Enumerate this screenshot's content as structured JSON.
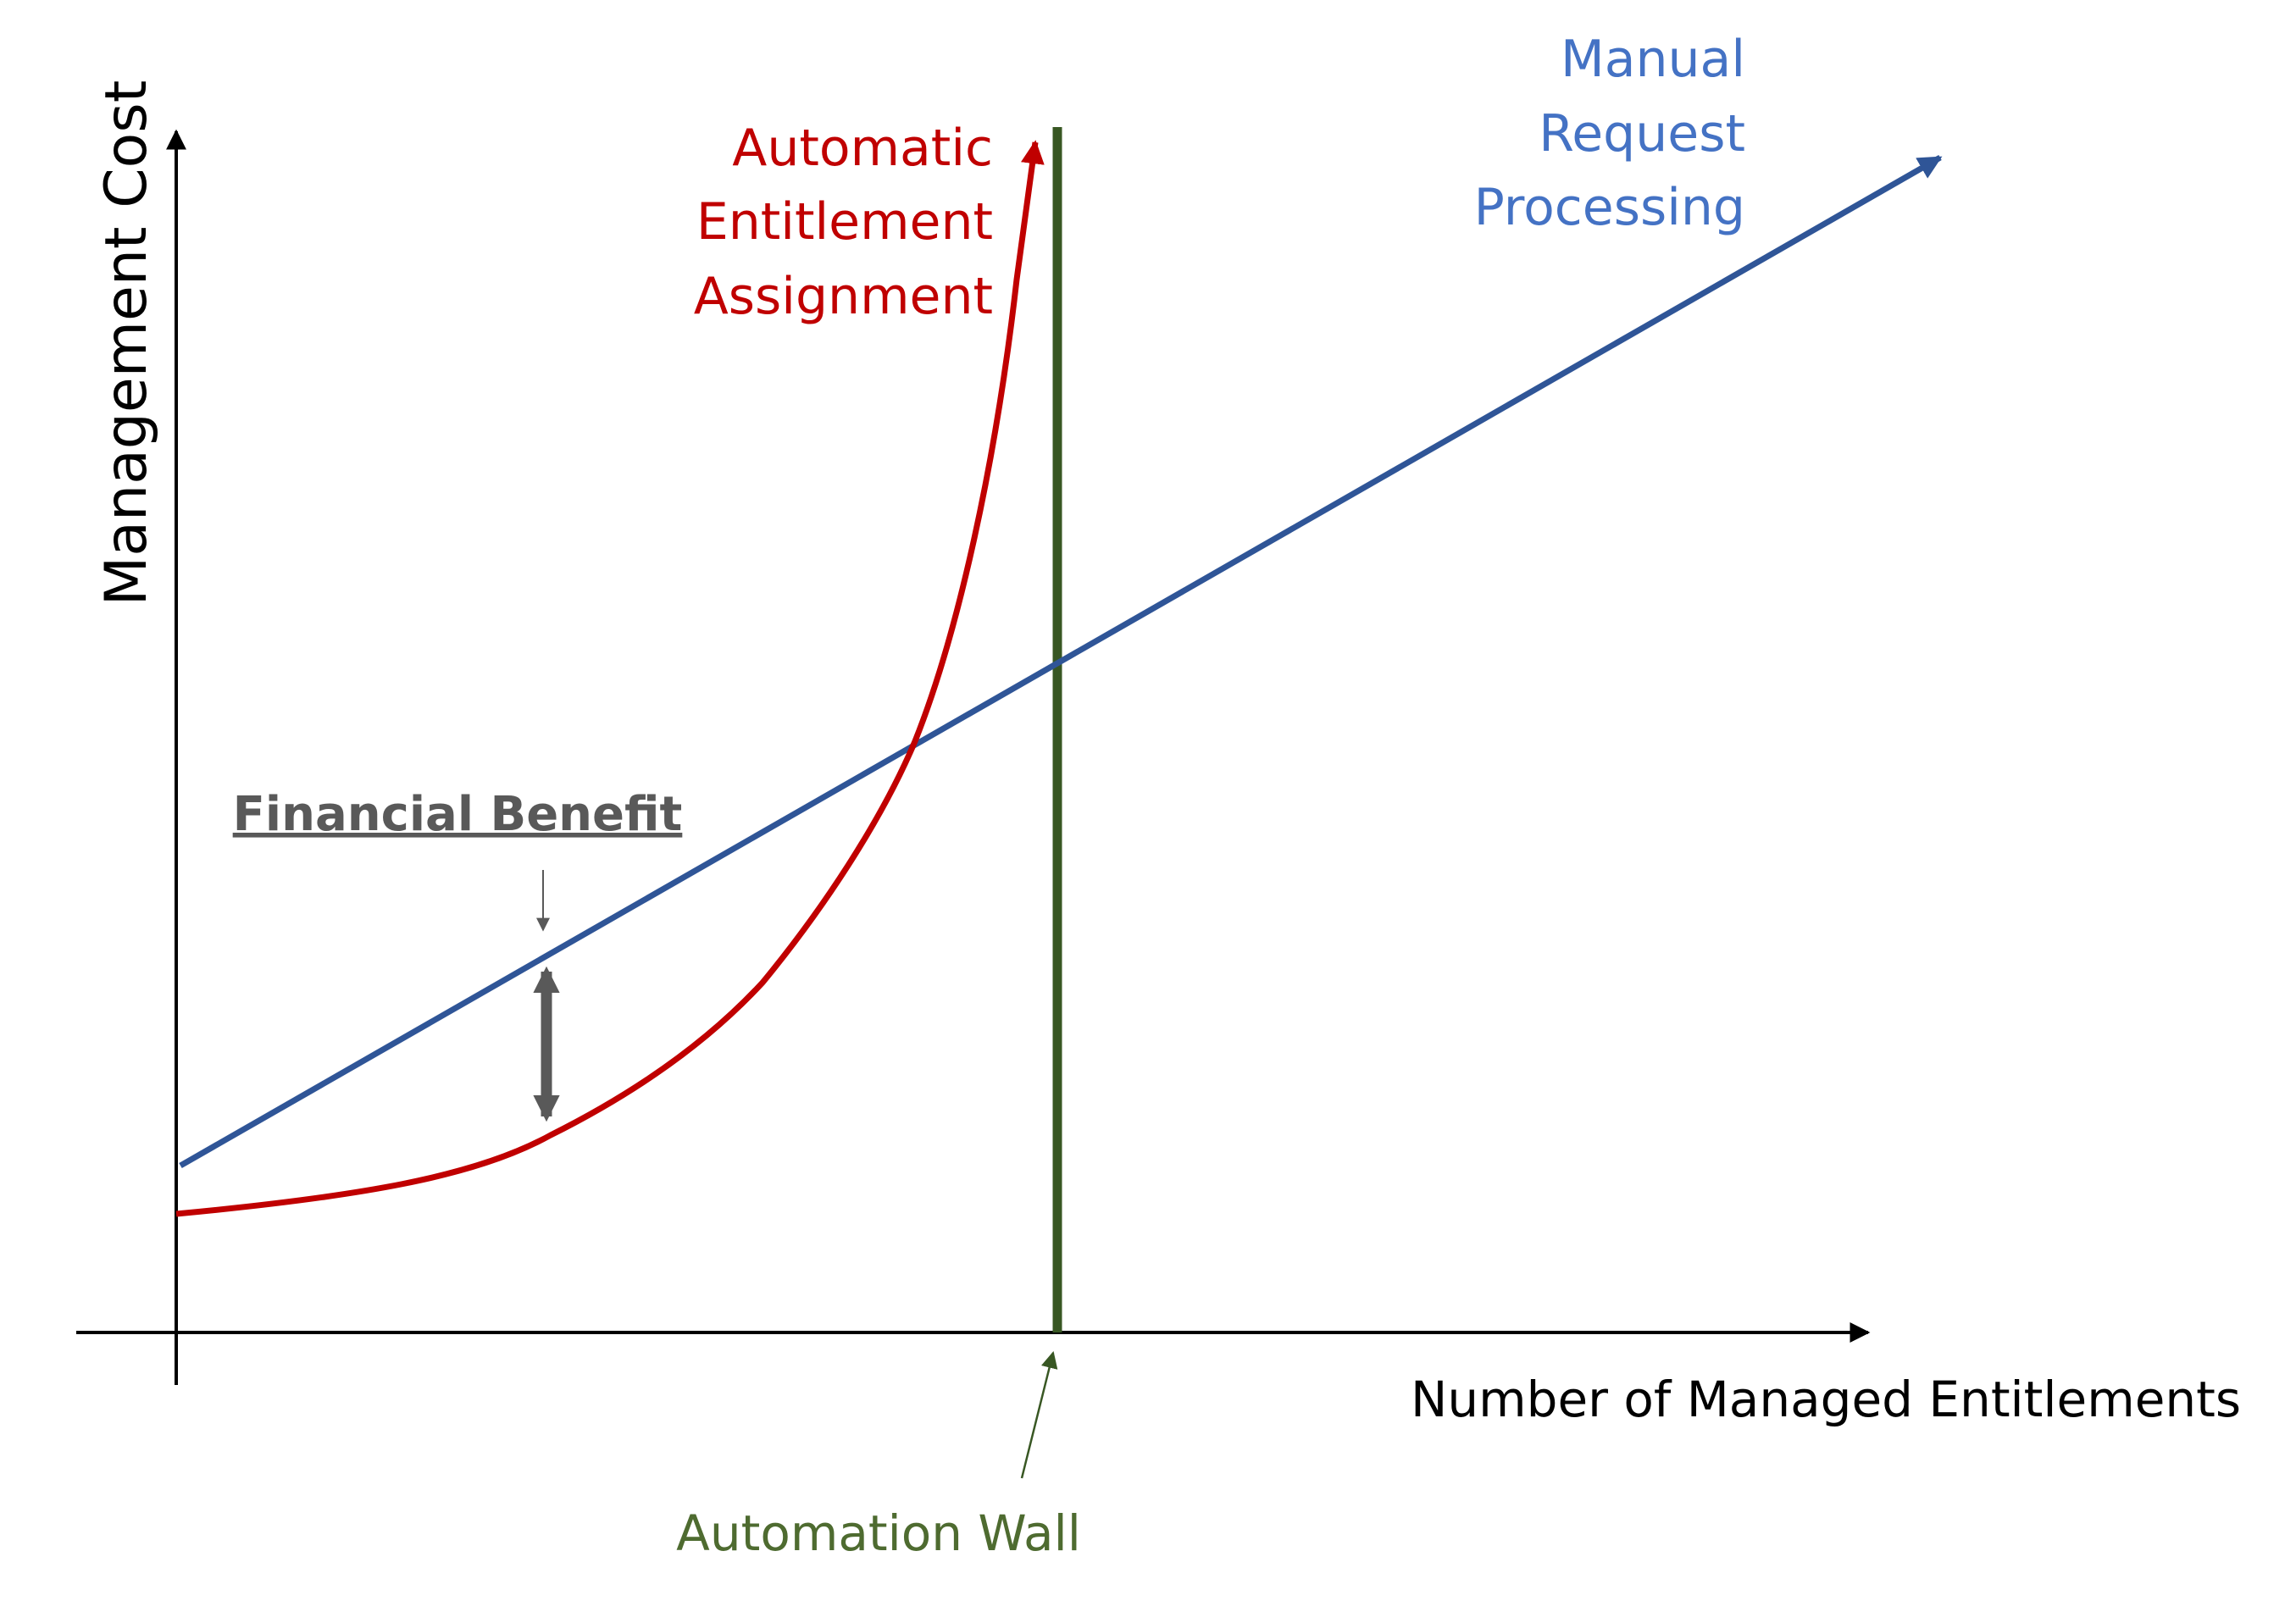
{
  "axes": {
    "y_label": "Management Cost",
    "x_label": "Number of Managed Entitlements"
  },
  "series": {
    "automatic": {
      "label_lines": [
        "Automatic",
        "Entitlement",
        "Assignment"
      ],
      "color": "#c00000"
    },
    "manual": {
      "label_lines": [
        "Manual",
        "Request",
        "Processing"
      ],
      "color": "#2f5597"
    }
  },
  "automation_wall": {
    "label": "Automation Wall",
    "color": "#385723",
    "label_color": "#4e6b30"
  },
  "financial_benefit": {
    "label": "Financial Benefit",
    "color": "#595959"
  },
  "colors": {
    "axis": "#000000",
    "manual_label": "#4472c4"
  }
}
